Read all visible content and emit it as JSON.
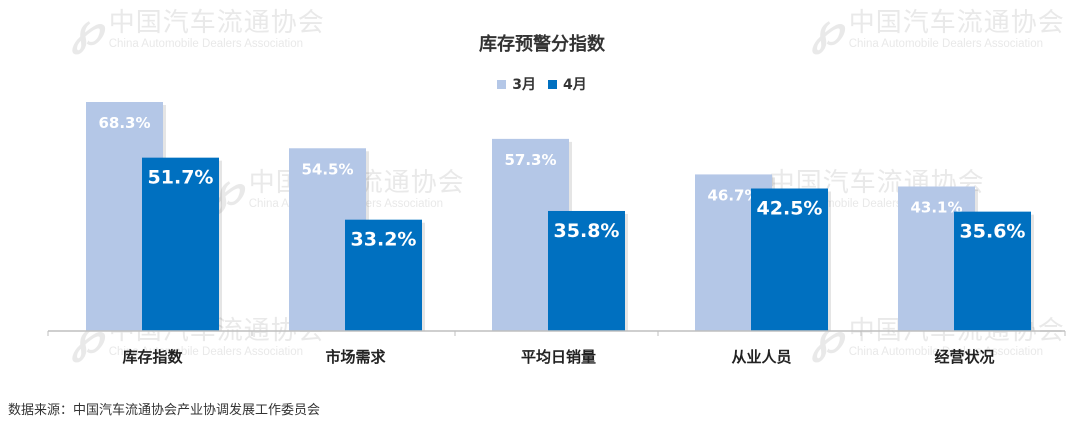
{
  "watermark": {
    "logo": "℘",
    "brand": "CADA",
    "cn": "中国汽车流通协会",
    "en": "China Automobile Dealers Association"
  },
  "chart_data": {
    "type": "bar",
    "title": "库存预警分指数",
    "categories": [
      "库存指数",
      "市场需求",
      "平均日销量",
      "从业人员",
      "经营状况"
    ],
    "series": [
      {
        "name": "3月",
        "values": [
          68.3,
          54.5,
          57.3,
          46.7,
          43.1
        ],
        "color": "#b4c7e7",
        "labels": [
          "68.3%",
          "54.5%",
          "57.3%",
          "46.7%",
          "43.1%"
        ]
      },
      {
        "name": "4月",
        "values": [
          51.7,
          33.2,
          35.8,
          42.5,
          35.6
        ],
        "color": "#0070c0",
        "labels": [
          "51.7%",
          "33.2%",
          "35.8%",
          "42.5%",
          "35.6%"
        ]
      }
    ],
    "ylim": [
      0,
      75
    ],
    "grid": false,
    "legend_position": "top-center",
    "xlabel": "",
    "ylabel": ""
  },
  "source": "数据来源：中国汽车流通协会产业协调发展工作委员会"
}
